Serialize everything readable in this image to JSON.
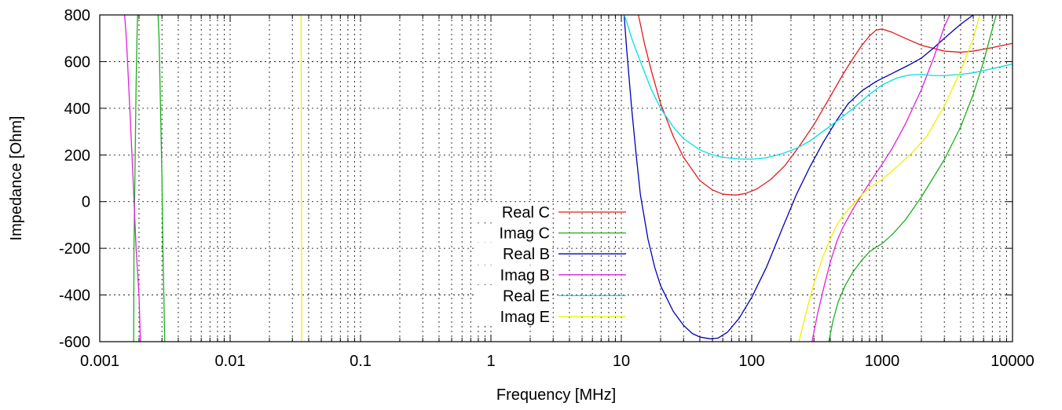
{
  "chart_data": {
    "type": "line",
    "title": "",
    "xlabel": "Frequency [MHz]",
    "ylabel": "Impedance [Ohm]",
    "xscale": "log",
    "xlim": [
      0.001,
      10000
    ],
    "ylim": [
      -600,
      800
    ],
    "grid": true,
    "legend_position": "center",
    "x_ticks": [
      {
        "value": 0.001,
        "label": "0.001"
      },
      {
        "value": 0.01,
        "label": "0.01"
      },
      {
        "value": 0.1,
        "label": "0.1"
      },
      {
        "value": 1,
        "label": "1"
      },
      {
        "value": 10,
        "label": "10"
      },
      {
        "value": 100,
        "label": "100"
      },
      {
        "value": 1000,
        "label": "1000"
      },
      {
        "value": 10000,
        "label": "10000"
      }
    ],
    "y_ticks": [
      {
        "value": 800,
        "label": "800"
      },
      {
        "value": 600,
        "label": "600"
      },
      {
        "value": 400,
        "label": "400"
      },
      {
        "value": 200,
        "label": "200"
      },
      {
        "value": 0,
        "label": "0"
      },
      {
        "value": -200,
        "label": "-200"
      },
      {
        "value": -400,
        "label": "-400"
      },
      {
        "value": -600,
        "label": "-600"
      }
    ],
    "series": [
      {
        "name": "Real C",
        "color": "#e41a1c",
        "points": [
          [
            13.5,
            800
          ],
          [
            14,
            760
          ],
          [
            15,
            680
          ],
          [
            17,
            560
          ],
          [
            20,
            420
          ],
          [
            25,
            280
          ],
          [
            30,
            190
          ],
          [
            40,
            90
          ],
          [
            50,
            50
          ],
          [
            60,
            32
          ],
          [
            75,
            28
          ],
          [
            90,
            35
          ],
          [
            110,
            55
          ],
          [
            140,
            95
          ],
          [
            180,
            155
          ],
          [
            230,
            235
          ],
          [
            300,
            330
          ],
          [
            400,
            450
          ],
          [
            500,
            545
          ],
          [
            600,
            615
          ],
          [
            700,
            670
          ],
          [
            800,
            710
          ],
          [
            900,
            735
          ],
          [
            1000,
            740
          ],
          [
            1200,
            725
          ],
          [
            1500,
            700
          ],
          [
            2000,
            670
          ],
          [
            3000,
            645
          ],
          [
            4000,
            640
          ],
          [
            5000,
            645
          ],
          [
            7000,
            660
          ],
          [
            10000,
            678
          ]
        ]
      },
      {
        "name": "Imag C",
        "color": "#1ab01a",
        "points": [
          [
            [
              0.00182,
              -600
            ],
            [
              0.00183,
              -200
            ],
            [
              0.00185,
              0
            ],
            [
              0.00188,
              300
            ],
            [
              0.0019,
              500
            ],
            [
              0.00193,
              700
            ],
            [
              0.00195,
              800
            ]
          ],
          [
            [
              0.0028,
              800
            ],
            [
              0.00285,
              700
            ],
            [
              0.0029,
              500
            ],
            [
              0.003,
              100
            ],
            [
              0.00305,
              -200
            ],
            [
              0.0031,
              -400
            ],
            [
              0.00315,
              -600
            ]
          ],
          [
            [
              390,
              -600
            ],
            [
              420,
              -510
            ],
            [
              460,
              -430
            ],
            [
              520,
              -360
            ],
            [
              600,
              -300
            ],
            [
              700,
              -250
            ],
            [
              800,
              -215
            ],
            [
              900,
              -195
            ],
            [
              1000,
              -180
            ],
            [
              1200,
              -140
            ],
            [
              1500,
              -80
            ],
            [
              2000,
              20
            ],
            [
              3000,
              180
            ],
            [
              4000,
              320
            ],
            [
              5000,
              460
            ],
            [
              6000,
              600
            ],
            [
              7000,
              740
            ],
            [
              7500,
              800
            ]
          ]
        ]
      },
      {
        "name": "Real B",
        "color": "#0000b8",
        "points": [
          [
            10.5,
            800
          ],
          [
            11,
            650
          ],
          [
            12,
            400
          ],
          [
            13,
            200
          ],
          [
            14,
            30
          ],
          [
            16,
            -160
          ],
          [
            18,
            -280
          ],
          [
            20,
            -360
          ],
          [
            25,
            -470
          ],
          [
            30,
            -530
          ],
          [
            35,
            -565
          ],
          [
            40,
            -580
          ],
          [
            48,
            -588
          ],
          [
            55,
            -585
          ],
          [
            65,
            -560
          ],
          [
            80,
            -500
          ],
          [
            100,
            -410
          ],
          [
            130,
            -280
          ],
          [
            170,
            -120
          ],
          [
            220,
            30
          ],
          [
            280,
            150
          ],
          [
            350,
            250
          ],
          [
            450,
            350
          ],
          [
            550,
            420
          ],
          [
            700,
            475
          ],
          [
            900,
            515
          ],
          [
            1200,
            550
          ],
          [
            1600,
            585
          ],
          [
            2000,
            615
          ],
          [
            2500,
            660
          ],
          [
            3000,
            700
          ],
          [
            4000,
            760
          ],
          [
            5000,
            800
          ]
        ]
      },
      {
        "name": "Imag B",
        "color": "#e020e0",
        "points": [
          [
            [
              0.00155,
              800
            ],
            [
              0.0016,
              700
            ],
            [
              0.0017,
              400
            ],
            [
              0.0018,
              100
            ],
            [
              0.0019,
              -200
            ],
            [
              0.002,
              -400
            ],
            [
              0.00205,
              -600
            ]
          ],
          [
            [
              290,
              -600
            ],
            [
              320,
              -480
            ],
            [
              360,
              -360
            ],
            [
              400,
              -260
            ],
            [
              450,
              -170
            ],
            [
              500,
              -110
            ],
            [
              600,
              -30
            ],
            [
              700,
              30
            ],
            [
              800,
              80
            ],
            [
              1000,
              160
            ],
            [
              1200,
              230
            ],
            [
              1500,
              330
            ],
            [
              2000,
              480
            ],
            [
              2500,
              620
            ],
            [
              3000,
              750
            ],
            [
              3300,
              800
            ]
          ]
        ]
      },
      {
        "name": "Real E",
        "color": "#00e0e0",
        "points": [
          [
            10.5,
            800
          ],
          [
            11,
            770
          ],
          [
            12,
            700
          ],
          [
            14,
            600
          ],
          [
            17,
            480
          ],
          [
            20,
            400
          ],
          [
            25,
            320
          ],
          [
            30,
            270
          ],
          [
            40,
            222
          ],
          [
            50,
            200
          ],
          [
            60,
            190
          ],
          [
            80,
            183
          ],
          [
            100,
            182
          ],
          [
            130,
            188
          ],
          [
            170,
            205
          ],
          [
            220,
            228
          ],
          [
            280,
            260
          ],
          [
            350,
            300
          ],
          [
            450,
            345
          ],
          [
            600,
            400
          ],
          [
            800,
            460
          ],
          [
            1000,
            500
          ],
          [
            1300,
            530
          ],
          [
            1600,
            542
          ],
          [
            2000,
            545
          ],
          [
            2500,
            540
          ],
          [
            3000,
            540
          ],
          [
            4000,
            545
          ],
          [
            5000,
            552
          ],
          [
            7000,
            570
          ],
          [
            10000,
            590
          ]
        ]
      },
      {
        "name": "Imag E",
        "color": "#f0f000",
        "points": [
          [
            [
              0.035,
              800
            ],
            [
              0.0352,
              0
            ],
            [
              0.0354,
              -600
            ]
          ],
          [
            [
              230,
              -600
            ],
            [
              260,
              -480
            ],
            [
              300,
              -350
            ],
            [
              350,
              -240
            ],
            [
              400,
              -160
            ],
            [
              450,
              -100
            ],
            [
              500,
              -60
            ],
            [
              600,
              -10
            ],
            [
              700,
              30
            ],
            [
              800,
              60
            ],
            [
              1000,
              95
            ],
            [
              1300,
              150
            ],
            [
              1700,
              210
            ],
            [
              2200,
              280
            ],
            [
              3000,
              410
            ],
            [
              4000,
              560
            ],
            [
              5000,
              700
            ],
            [
              5600,
              800
            ]
          ]
        ]
      }
    ]
  }
}
